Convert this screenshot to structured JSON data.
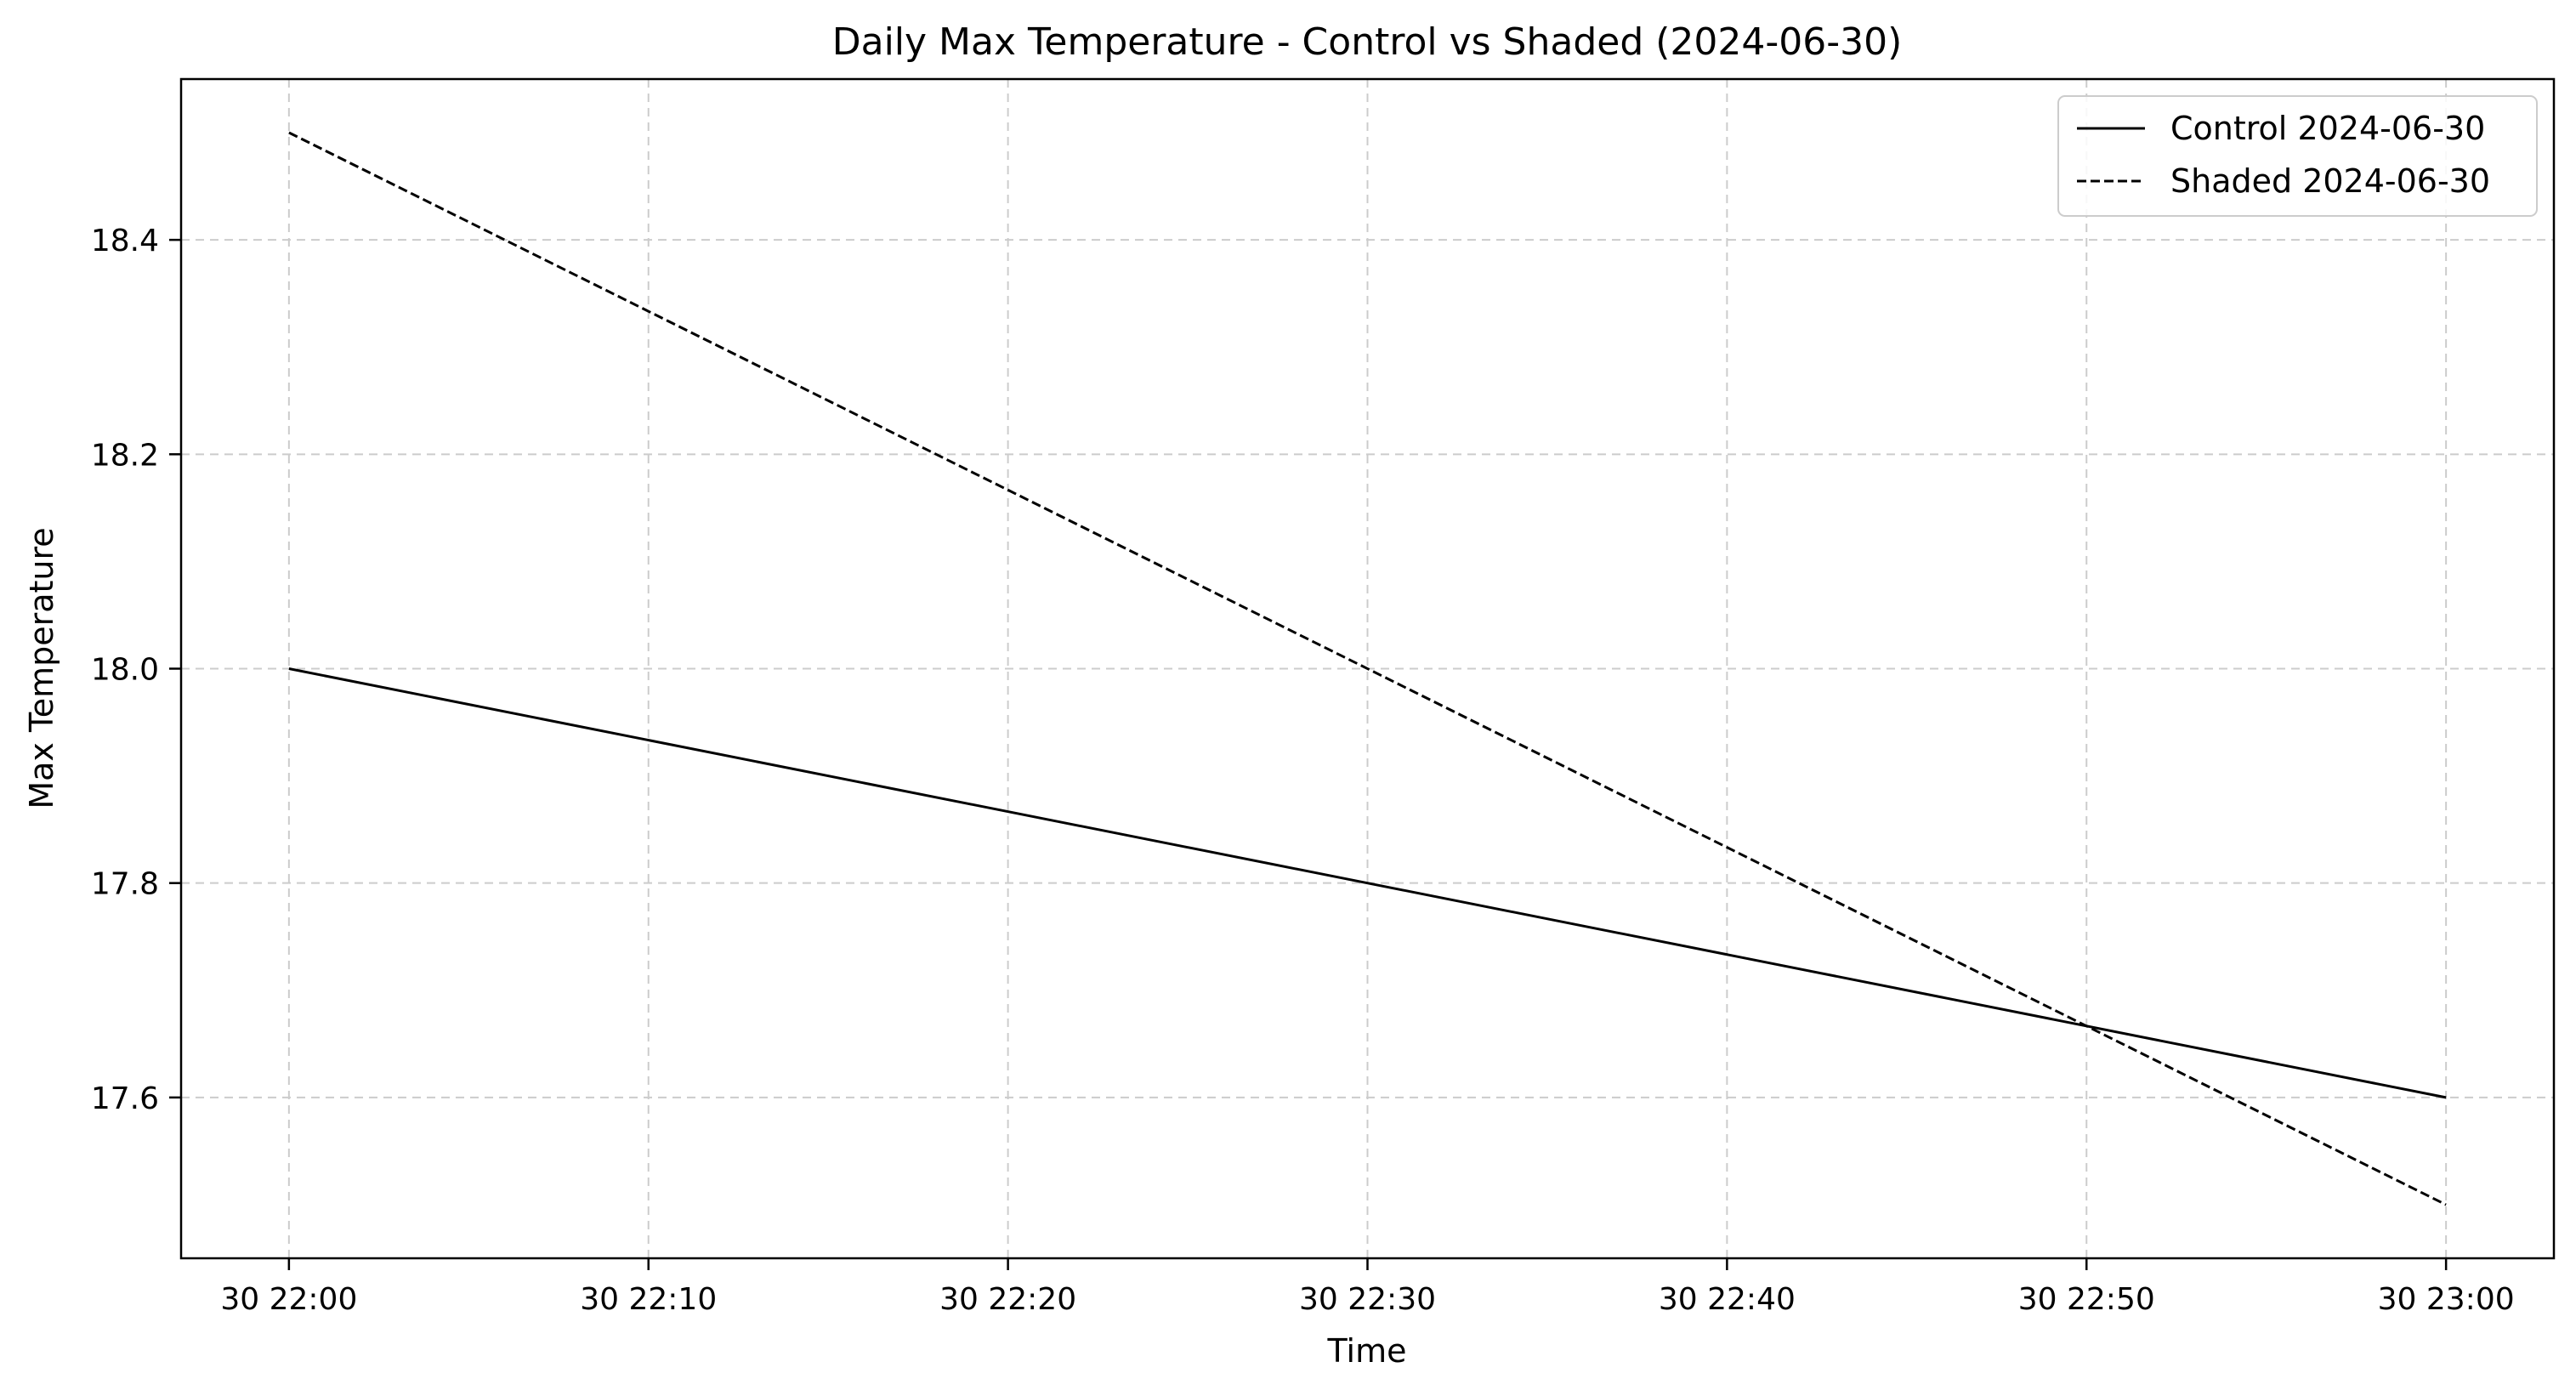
{
  "chart_data": {
    "type": "line",
    "title": "Daily Max Temperature - Control vs Shaded (2024-06-30)",
    "xlabel": "Time",
    "ylabel": "Max Temperature",
    "x_tick_labels": [
      "30 22:00",
      "30 22:10",
      "30 22:20",
      "30 22:30",
      "30 22:40",
      "30 22:50",
      "30 23:00"
    ],
    "y_tick_labels": [
      "17.6",
      "17.8",
      "18.0",
      "18.2",
      "18.4"
    ],
    "x_ticks": [
      "2024-06-30 22:00",
      "2024-06-30 22:10",
      "2024-06-30 22:20",
      "2024-06-30 22:30",
      "2024-06-30 22:40",
      "2024-06-30 22:50",
      "2024-06-30 23:00"
    ],
    "y_ticks": [
      17.6,
      17.8,
      18.0,
      18.2,
      18.4
    ],
    "xlim": [
      "2024-06-30 21:57",
      "2024-06-30 23:03"
    ],
    "ylim": [
      17.45,
      18.55
    ],
    "grid": true,
    "legend_position": "top-right",
    "series": [
      {
        "name": "Control 2024-06-30",
        "color": "#000000",
        "style": "solid",
        "x": [
          "2024-06-30 22:00",
          "2024-06-30 23:00"
        ],
        "y": [
          18.0,
          17.6
        ]
      },
      {
        "name": "Shaded 2024-06-30",
        "color": "#000000",
        "style": "dashed",
        "x": [
          "2024-06-30 22:00",
          "2024-06-30 23:00"
        ],
        "y": [
          18.5,
          17.5
        ]
      }
    ]
  }
}
